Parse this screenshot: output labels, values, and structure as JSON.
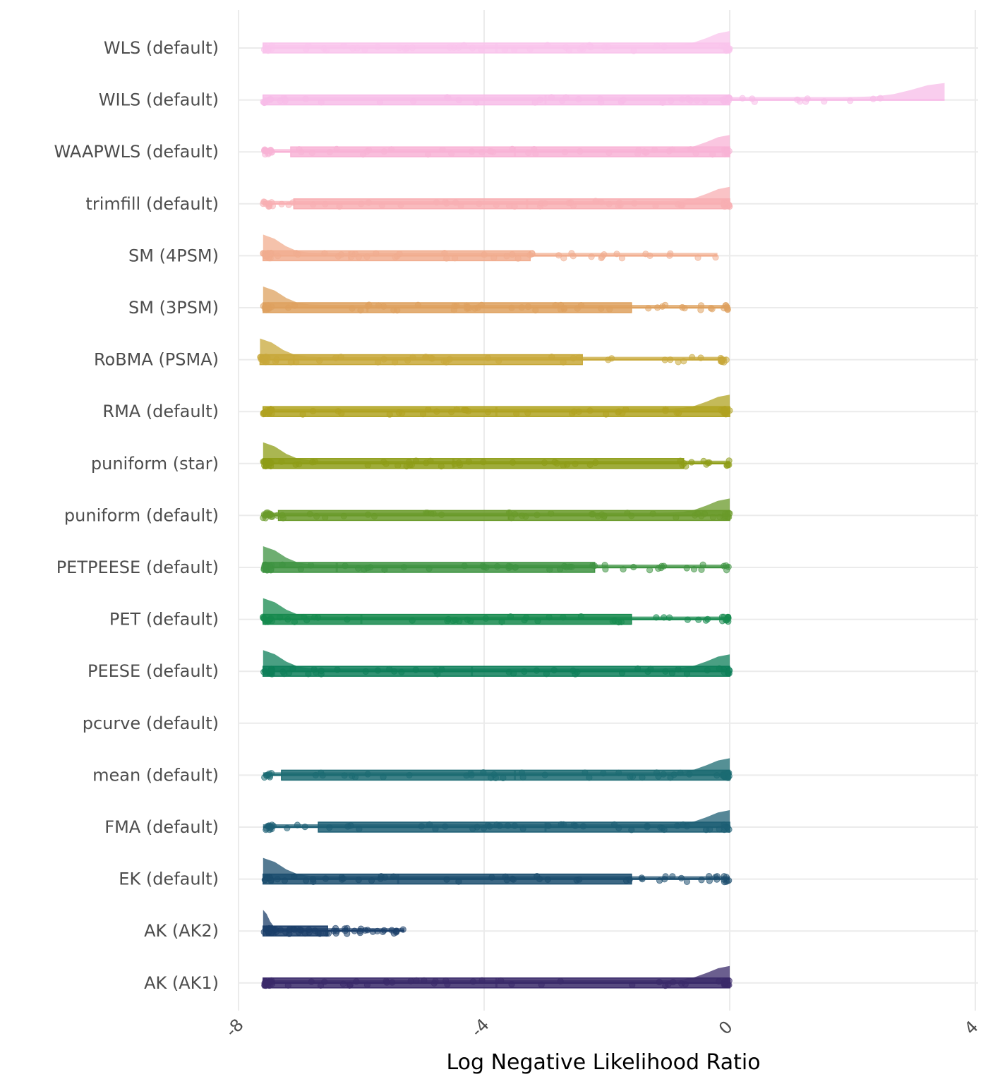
{
  "chart_data": {
    "type": "raincloud",
    "title": "",
    "xlabel": "Log Negative Likelihood Ratio",
    "ylabel": "",
    "xlim": [
      -8,
      4
    ],
    "x_ticks": [
      -8,
      -4,
      0,
      4
    ],
    "x_tick_labels": [
      "-8",
      "-4",
      "0",
      "4"
    ],
    "grid": true,
    "legend": "none",
    "categories": [
      {
        "label": "WLS (default)",
        "color": "#f9c4ec",
        "lower": -7.6,
        "q1": -7.6,
        "median": -3.8,
        "q3": 0.0,
        "upper": 0.0,
        "peak": "right",
        "has_data": true
      },
      {
        "label": "WILS (default)",
        "color": "#f7bce8",
        "lower": -7.6,
        "q1": -7.6,
        "median": -3.0,
        "q3": 0.0,
        "upper": 3.5,
        "peak": "right",
        "has_data": true
      },
      {
        "label": "WAAPWLS (default)",
        "color": "#f8b3d6",
        "lower": -7.6,
        "q1": -7.15,
        "median": -3.5,
        "q3": 0.0,
        "upper": 0.0,
        "peak": "right",
        "has_data": true
      },
      {
        "label": "trimfill (default)",
        "color": "#f8afb3",
        "lower": -7.6,
        "q1": -7.1,
        "median": -3.3,
        "q3": 0.0,
        "upper": 0.0,
        "peak": "right",
        "has_data": true
      },
      {
        "label": "SM (4PSM)",
        "color": "#f1ad8f",
        "lower": -7.6,
        "q1": -7.6,
        "median": -6.2,
        "q3": -3.25,
        "upper": -0.2,
        "peak": "left",
        "has_data": true
      },
      {
        "label": "SM (3PSM)",
        "color": "#dea15f",
        "lower": -7.6,
        "q1": -7.6,
        "median": -5.9,
        "q3": -1.6,
        "upper": 0.0,
        "peak": "left",
        "has_data": true
      },
      {
        "label": "RoBMA (PSMA)",
        "color": "#c8a83a",
        "lower": -7.65,
        "q1": -7.65,
        "median": -7.1,
        "q3": -2.4,
        "upper": -0.05,
        "peak": "left",
        "has_data": true
      },
      {
        "label": "RMA (default)",
        "color": "#b0a321",
        "lower": -7.6,
        "q1": -7.6,
        "median": -3.8,
        "q3": 0.0,
        "upper": 0.0,
        "peak": "right",
        "has_data": true
      },
      {
        "label": "puniform (star)",
        "color": "#8e9d17",
        "lower": -7.6,
        "q1": -7.6,
        "median": -4.5,
        "q3": -0.75,
        "upper": 0.0,
        "peak": "left",
        "has_data": true
      },
      {
        "label": "puniform (default)",
        "color": "#6a9a2a",
        "lower": -7.6,
        "q1": -7.35,
        "median": -3.6,
        "q3": 0.0,
        "upper": 0.0,
        "peak": "right",
        "has_data": true
      },
      {
        "label": "PETPEESE (default)",
        "color": "#3e9341",
        "lower": -7.6,
        "q1": -7.6,
        "median": -6.4,
        "q3": -2.2,
        "upper": 0.0,
        "peak": "left",
        "has_data": true
      },
      {
        "label": "PET (default)",
        "color": "#168a4e",
        "lower": -7.6,
        "q1": -7.6,
        "median": -6.0,
        "q3": -1.6,
        "upper": 0.0,
        "peak": "left",
        "has_data": true
      },
      {
        "label": "PEESE (default)",
        "color": "#0e7f5a",
        "lower": -7.6,
        "q1": -7.6,
        "median": -4.2,
        "q3": 0.0,
        "upper": 0.0,
        "peak": "both",
        "has_data": true
      },
      {
        "label": "pcurve (default)",
        "color": "#0d7465",
        "lower": null,
        "q1": null,
        "median": null,
        "q3": null,
        "upper": null,
        "peak": "none",
        "has_data": false
      },
      {
        "label": "mean (default)",
        "color": "#1c6b72",
        "lower": -7.6,
        "q1": -7.3,
        "median": -3.5,
        "q3": 0.0,
        "upper": 0.0,
        "peak": "right",
        "has_data": true
      },
      {
        "label": "FMA (default)",
        "color": "#1d5f74",
        "lower": -7.6,
        "q1": -6.7,
        "median": -3.0,
        "q3": 0.0,
        "upper": 0.0,
        "peak": "right",
        "has_data": true
      },
      {
        "label": "EK (default)",
        "color": "#1b4d6e",
        "lower": -7.6,
        "q1": -7.6,
        "median": -5.4,
        "q3": -1.6,
        "upper": 0.0,
        "peak": "left",
        "has_data": true
      },
      {
        "label": "AK (AK2)",
        "color": "#1c3f6a",
        "lower": -7.6,
        "q1": -7.6,
        "median": -7.4,
        "q3": -6.55,
        "upper": -5.3,
        "peak": "left",
        "has_data": true
      },
      {
        "label": "AK (AK1)",
        "color": "#3a2a6a",
        "lower": -7.6,
        "q1": -7.6,
        "median": -3.8,
        "q3": 0.0,
        "upper": 0.0,
        "peak": "right",
        "has_data": true
      }
    ]
  }
}
